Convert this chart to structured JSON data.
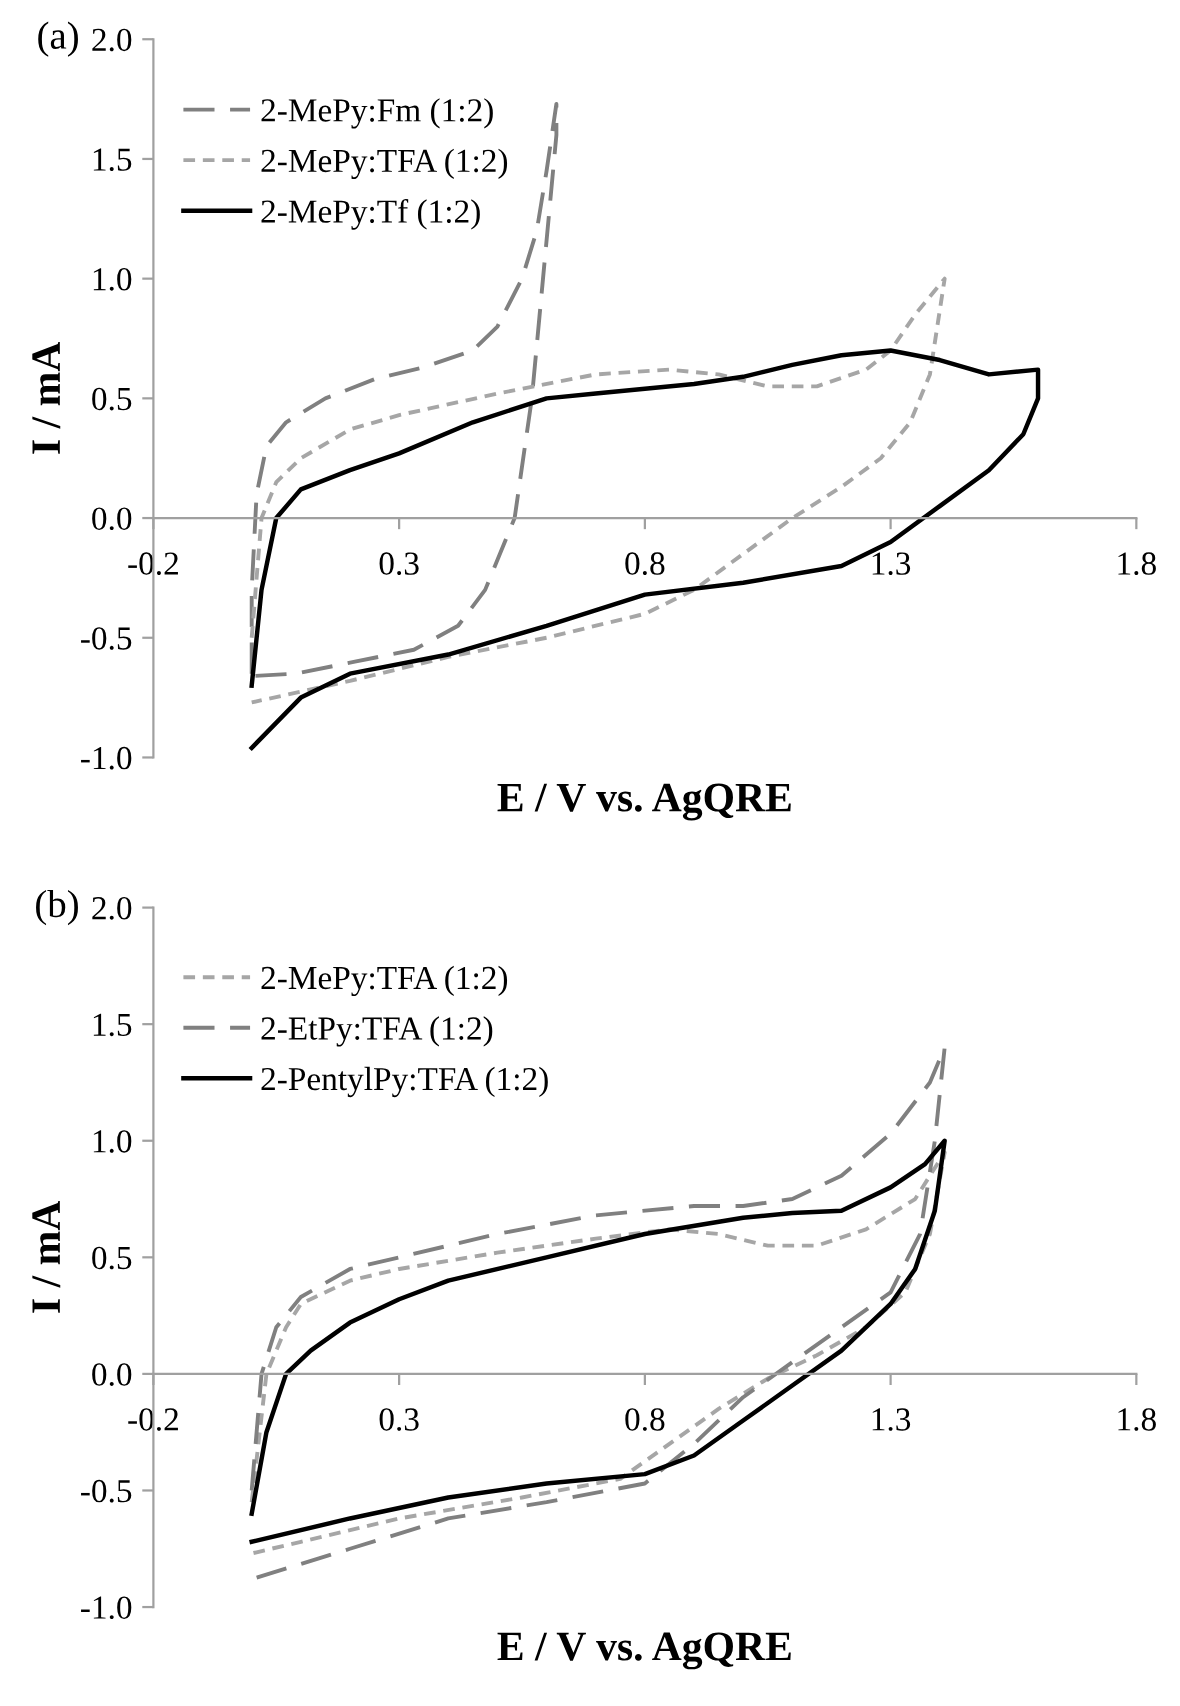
{
  "chart_data": [
    {
      "type": "line",
      "title": "(a)",
      "xlabel": "E / V vs. AgQRE",
      "ylabel": "I / mA",
      "xlim": [
        -0.2,
        1.8
      ],
      "xticks": [
        -0.2,
        0.3,
        0.8,
        1.3,
        1.8
      ],
      "ylim": [
        -1.0,
        2.0
      ],
      "yticks": [
        {
          "value": -1,
          "label": "-1.0"
        },
        {
          "value": -0.5,
          "label": "-0.5"
        },
        {
          "value": 0,
          "label": "0.0"
        },
        {
          "value": 0.5,
          "label": "0.5"
        },
        {
          "value": 1,
          "label": "1.0"
        },
        {
          "value": 1.5,
          "label": "1.5"
        },
        {
          "value": 2,
          "label": "2.0"
        }
      ],
      "grid": false,
      "legend": "top left",
      "series": [
        {
          "name": "2-MePy:Fm (1:2)",
          "color": "#808080",
          "line_style": "dashed",
          "x": [
            0.0,
            0.0,
            0.01,
            0.03,
            0.07,
            0.15,
            0.25,
            0.35,
            0.45,
            0.5,
            0.55,
            0.58,
            0.6,
            0.62,
            0.62,
            0.57,
            0.535,
            0.475,
            0.42,
            0.33,
            0.21,
            0.09,
            0.0
          ],
          "values": [
            -0.65,
            -0.3,
            0.1,
            0.3,
            0.4,
            0.5,
            0.58,
            0.63,
            0.7,
            0.8,
            1.0,
            1.2,
            1.45,
            1.73,
            1.6,
            0.5,
            0.0,
            -0.3,
            -0.45,
            -0.55,
            -0.6,
            -0.65,
            -0.66
          ]
        },
        {
          "name": "2-MePy:TFA (1:2)",
          "color": "#a6a6a6",
          "line_style": "dotted",
          "x": [
            0.0,
            0.02,
            0.05,
            0.1,
            0.2,
            0.3,
            0.5,
            0.7,
            0.85,
            0.95,
            1.05,
            1.15,
            1.25,
            1.3,
            1.35,
            1.41,
            1.38,
            1.34,
            1.28,
            1.2,
            1.1,
            1.0,
            0.9,
            0.8,
            0.6,
            0.4,
            0.2,
            0.0
          ],
          "values": [
            -0.5,
            0.0,
            0.15,
            0.25,
            0.37,
            0.43,
            0.52,
            0.6,
            0.62,
            0.6,
            0.55,
            0.55,
            0.62,
            0.7,
            0.85,
            1.0,
            0.6,
            0.4,
            0.25,
            0.13,
            0.0,
            -0.15,
            -0.3,
            -0.4,
            -0.5,
            -0.58,
            -0.68,
            -0.77
          ]
        },
        {
          "name": "2-MePy:Tf (1:2)",
          "color": "#000000",
          "line_style": "solid",
          "x": [
            0.0,
            0.02,
            0.05,
            0.1,
            0.2,
            0.3,
            0.45,
            0.6,
            0.7,
            0.9,
            1.0,
            1.1,
            1.2,
            1.3,
            1.4,
            1.5,
            1.6,
            1.6,
            1.57,
            1.5,
            1.4,
            1.3,
            1.2,
            1.0,
            0.8,
            0.6,
            0.4,
            0.2,
            0.1,
            0.0
          ],
          "values": [
            -0.7,
            -0.3,
            0.0,
            0.12,
            0.2,
            0.27,
            0.4,
            0.5,
            0.52,
            0.56,
            0.59,
            0.64,
            0.68,
            0.7,
            0.66,
            0.6,
            0.62,
            0.5,
            0.35,
            0.2,
            0.05,
            -0.1,
            -0.2,
            -0.27,
            -0.32,
            -0.45,
            -0.57,
            -0.65,
            -0.75,
            -0.96
          ]
        }
      ]
    },
    {
      "type": "line",
      "title": "(b)",
      "xlabel": "E / V vs. AgQRE",
      "ylabel": "I / mA",
      "xlim": [
        -0.2,
        1.8
      ],
      "xticks": [
        -0.2,
        0.3,
        0.8,
        1.3,
        1.8
      ],
      "ylim": [
        -1.0,
        2.0
      ],
      "yticks": [
        {
          "value": -1,
          "label": "-1.0"
        },
        {
          "value": -0.5,
          "label": "-0.5"
        },
        {
          "value": 0,
          "label": "0.0"
        },
        {
          "value": 0.5,
          "label": "0.5"
        },
        {
          "value": 1,
          "label": "1.0"
        },
        {
          "value": 1.5,
          "label": "1.5"
        },
        {
          "value": 2,
          "label": "2.0"
        }
      ],
      "grid": false,
      "legend": "top left",
      "series": [
        {
          "name": "2-MePy:TFA (1:2)",
          "color": "#a6a6a6",
          "line_style": "dotted",
          "x": [
            0.0,
            0.03,
            0.07,
            0.1,
            0.2,
            0.3,
            0.5,
            0.7,
            0.85,
            0.95,
            1.05,
            1.15,
            1.25,
            1.35,
            1.41,
            1.38,
            1.33,
            1.25,
            1.15,
            1.05,
            0.95,
            0.85,
            0.75,
            0.55,
            0.3,
            0.1,
            0.0
          ],
          "values": [
            -0.55,
            0.0,
            0.2,
            0.3,
            0.4,
            0.45,
            0.52,
            0.58,
            0.62,
            0.6,
            0.55,
            0.55,
            0.62,
            0.75,
            0.95,
            0.6,
            0.35,
            0.2,
            0.08,
            -0.02,
            -0.15,
            -0.3,
            -0.45,
            -0.53,
            -0.62,
            -0.72,
            -0.77
          ]
        },
        {
          "name": "2-EtPy:TFA (1:2)",
          "color": "#808080",
          "line_style": "dashed",
          "x": [
            0.0,
            0.02,
            0.05,
            0.1,
            0.2,
            0.3,
            0.5,
            0.7,
            0.9,
            1.0,
            1.1,
            1.2,
            1.3,
            1.38,
            1.41,
            1.39,
            1.36,
            1.3,
            1.2,
            1.1,
            1.0,
            0.9,
            0.8,
            0.6,
            0.4,
            0.2,
            0.0
          ],
          "values": [
            -0.5,
            0.0,
            0.2,
            0.33,
            0.45,
            0.5,
            0.6,
            0.68,
            0.72,
            0.72,
            0.75,
            0.85,
            1.03,
            1.25,
            1.4,
            1.0,
            0.6,
            0.35,
            0.2,
            0.05,
            -0.1,
            -0.3,
            -0.47,
            -0.55,
            -0.62,
            -0.75,
            -0.88
          ]
        },
        {
          "name": "2-PentylPy:TFA (1:2)",
          "color": "#000000",
          "line_style": "solid",
          "x": [
            0.0,
            0.03,
            0.07,
            0.12,
            0.2,
            0.3,
            0.4,
            0.6,
            0.8,
            1.0,
            1.1,
            1.2,
            1.3,
            1.37,
            1.41,
            1.39,
            1.35,
            1.3,
            1.2,
            1.1,
            1.0,
            0.9,
            0.8,
            0.6,
            0.4,
            0.2,
            0.0
          ],
          "values": [
            -0.6,
            -0.25,
            0.0,
            0.1,
            0.22,
            0.32,
            0.4,
            0.5,
            0.6,
            0.67,
            0.69,
            0.7,
            0.8,
            0.9,
            1.0,
            0.7,
            0.45,
            0.3,
            0.1,
            -0.05,
            -0.2,
            -0.35,
            -0.43,
            -0.47,
            -0.53,
            -0.62,
            -0.72
          ]
        }
      ]
    }
  ]
}
